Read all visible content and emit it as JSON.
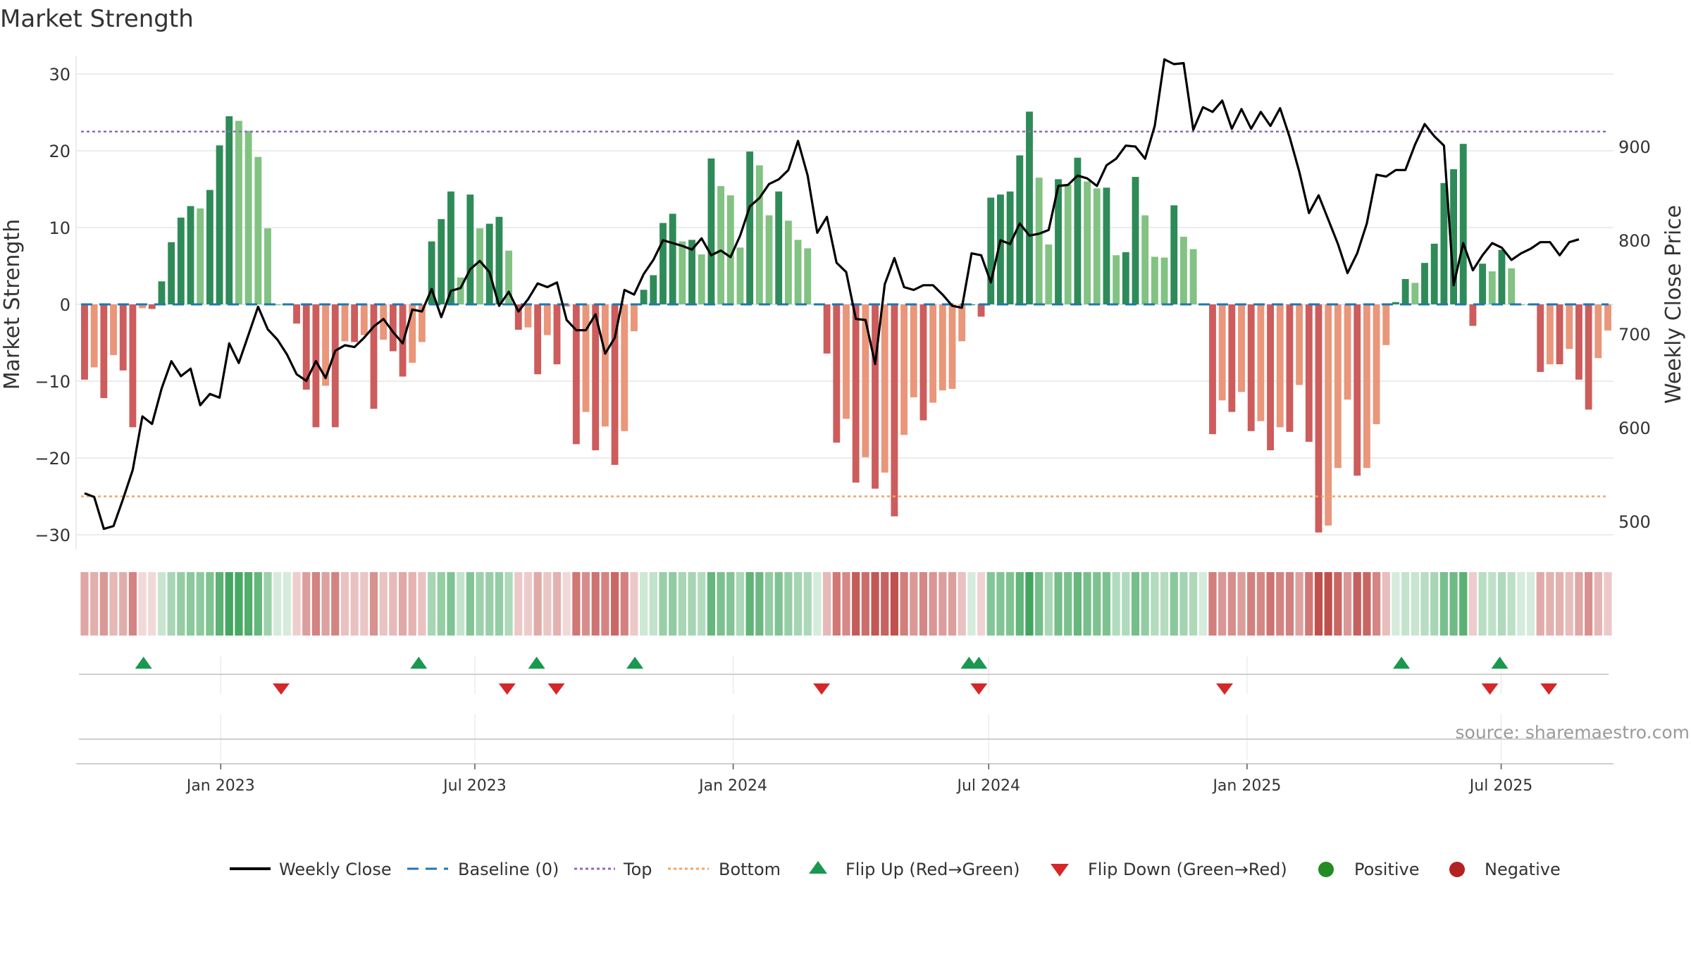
{
  "title": "Market Strength",
  "source": "source: sharemaestro.com",
  "colors": {
    "green_dark": "#2e8b57",
    "green_light": "#82c282",
    "red_dark": "#cd5c5c",
    "red_light": "#e9967a",
    "top_line": "#9467bd",
    "bottom_line": "#f4a460",
    "baseline": "#1f77b4",
    "close_line": "#000000",
    "flip_up": "#1a9850",
    "flip_down": "#d62728",
    "positive": "#228b22",
    "negative": "#b22222",
    "grid": "#e6e6e6",
    "source": "#9a9a9a"
  },
  "chart_data": {
    "type": "bar",
    "title": "Market Strength",
    "ylabel": "Market Strength",
    "y2label": "Weekly Close Price",
    "ylim": [
      -33,
      33
    ],
    "y2lim": [
      468,
      998
    ],
    "yticks": [
      30,
      20,
      10,
      0,
      -10,
      -20,
      -30
    ],
    "ytick_labels": [
      "30",
      "20",
      "10",
      "0",
      "−10",
      "−20",
      "−30"
    ],
    "y2ticks": [
      900,
      800,
      700,
      600,
      500
    ],
    "x_start": "2022-09-26",
    "x_end": "2025-09-15",
    "xticks": [
      "2023-01-01",
      "2023-07-01",
      "2024-01-01",
      "2024-07-01",
      "2025-01-01",
      "2025-07-01"
    ],
    "xtick_labels": [
      "Jan 2023",
      "Jul 2023",
      "Jan 2024",
      "Jul 2024",
      "Jan 2025",
      "Jul 2025"
    ],
    "top_level": 22.5,
    "bottom_level": -25,
    "baseline_level": 0,
    "strength": [
      -9.8,
      -8.2,
      -12.2,
      -6.6,
      -8.6,
      -16.0,
      -0.5,
      -0.6,
      3.0,
      8.1,
      11.3,
      12.8,
      12.5,
      14.9,
      20.7,
      24.5,
      23.9,
      22.6,
      19.2,
      9.9,
      0,
      0,
      -2.5,
      -11.1,
      -16.0,
      -10.6,
      -16.0,
      -4.8,
      -4.9,
      -4.0,
      -13.6,
      -4.6,
      -6.1,
      -9.4,
      -7.6,
      -4.9,
      8.2,
      11.1,
      14.7,
      3.5,
      14.3,
      9.9,
      10.5,
      11.4,
      7.0,
      -3.3,
      -3.0,
      -9.1,
      -4.0,
      -7.8,
      -0.3,
      -18.2,
      -14.0,
      -19.0,
      -15.9,
      -20.9,
      -16.5,
      -3.5,
      1.9,
      3.8,
      10.6,
      11.8,
      8.2,
      8.4,
      6.5,
      19.0,
      15.4,
      14.2,
      7.4,
      19.9,
      18.1,
      11.6,
      14.7,
      10.9,
      8.4,
      7.3,
      0,
      -6.4,
      -18.0,
      -14.9,
      -23.2,
      -19.9,
      -24.0,
      -21.9,
      -27.6,
      -17.0,
      -12.1,
      -15.1,
      -12.8,
      -11.2,
      -11.0,
      -4.8,
      0,
      -1.6,
      13.9,
      14.3,
      14.7,
      19.4,
      25.1,
      16.5,
      7.8,
      16.3,
      15.6,
      19.1,
      16.0,
      15.1,
      15.2,
      6.4,
      6.8,
      16.6,
      11.6,
      6.2,
      6.1,
      12.9,
      8.8,
      7.2,
      0,
      -16.9,
      -12.5,
      -14.0,
      -11.4,
      -16.5,
      -15.2,
      -19.0,
      -16.0,
      -16.6,
      -10.5,
      -17.9,
      -29.7,
      -28.8,
      -21.3,
      -12.4,
      -22.3,
      -21.3,
      -15.6,
      -5.3,
      0.3,
      3.3,
      2.8,
      5.4,
      7.9,
      15.8,
      17.6,
      20.9,
      -2.8,
      5.3,
      4.3,
      7.1,
      4.7,
      0,
      0,
      -8.8,
      -7.8,
      -7.8,
      -5.8,
      -9.8,
      -13.7,
      -7.0,
      -3.4
    ],
    "weekly_close": [
      530,
      526,
      492,
      495,
      524,
      555,
      612,
      604,
      642,
      671,
      655,
      663,
      624,
      636,
      632,
      690,
      669,
      699,
      729,
      705,
      694,
      678,
      657,
      650,
      671,
      653,
      682,
      688,
      686,
      696,
      708,
      716,
      702,
      690,
      726,
      724,
      748,
      718,
      746,
      749,
      769,
      778,
      766,
      730,
      745,
      724,
      737,
      754,
      750,
      755,
      715,
      704,
      704,
      721,
      679,
      696,
      747,
      742,
      764,
      779,
      800,
      797,
      794,
      790,
      802,
      784,
      789,
      782,
      805,
      836,
      845,
      860,
      865,
      875,
      906,
      869,
      808,
      825,
      776,
      766,
      716,
      715,
      668,
      753,
      781,
      750,
      747,
      752,
      752,
      742,
      730,
      728,
      786,
      784,
      755,
      800,
      796,
      818,
      805,
      807,
      811,
      858,
      859,
      869,
      866,
      858,
      880,
      887,
      901,
      900,
      887,
      922,
      993,
      988,
      989,
      918,
      942,
      937,
      949,
      919,
      940,
      919,
      937,
      922,
      941,
      910,
      873,
      829,
      848,
      822,
      796,
      765,
      786,
      818,
      870,
      868,
      875,
      875,
      902,
      924,
      911,
      901,
      752,
      797,
      768,
      784,
      797,
      792,
      779,
      786,
      791,
      798,
      798,
      784,
      798,
      801
    ],
    "flip_up_dates": [
      "2022-11-07",
      "2023-05-22",
      "2023-08-14",
      "2023-10-23",
      "2024-06-17",
      "2024-06-24",
      "2025-04-21",
      "2025-06-30"
    ],
    "flip_down_dates": [
      "2023-02-13",
      "2023-07-24",
      "2023-08-28",
      "2024-03-04",
      "2024-06-24",
      "2024-12-16",
      "2025-06-23",
      "2025-08-04"
    ],
    "legend": [
      "Weekly Close",
      "Baseline (0)",
      "Top",
      "Bottom",
      "Flip Up (Red→Green)",
      "Flip Down (Green→Red)",
      "Positive",
      "Negative"
    ]
  }
}
